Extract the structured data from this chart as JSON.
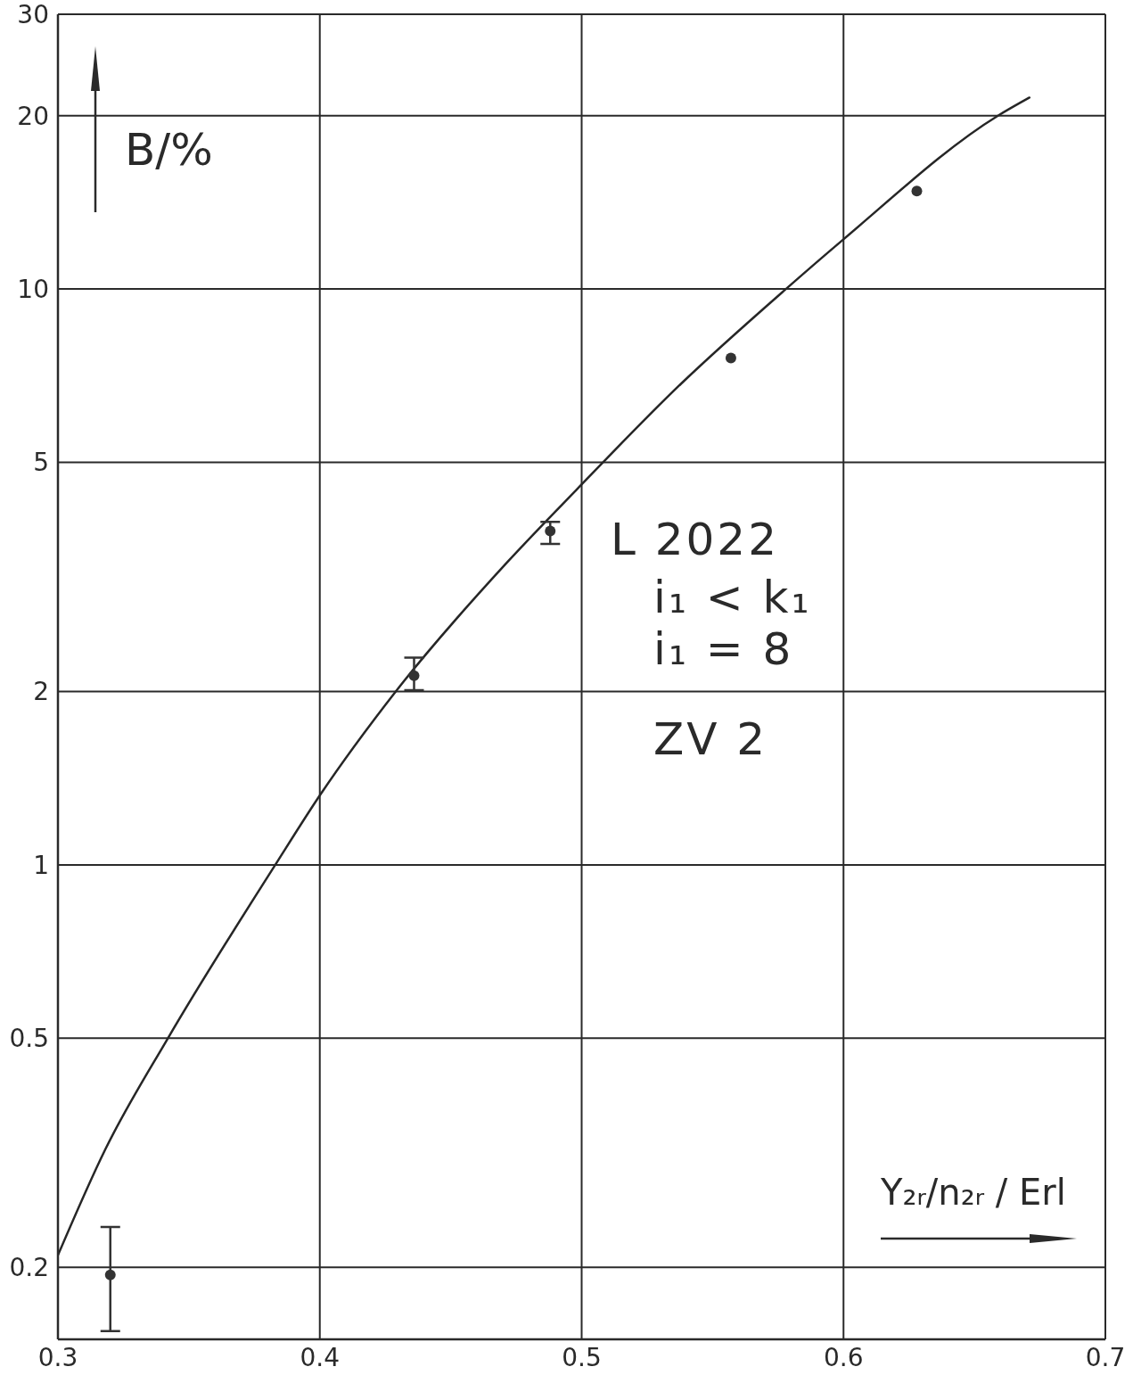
{
  "chart_data": {
    "type": "scatter",
    "xlabel": "Y₂ᵣ/n₂ᵣ / Erl",
    "ylabel": "B/%",
    "annotations": [
      "L 2022",
      "i₁ < k₁",
      "i₁ = 8",
      "ZV 2"
    ],
    "series": [
      {
        "type": "line",
        "color": "#262626",
        "marker": "none",
        "line_style": "solid",
        "x": [
          0.3,
          0.318,
          0.342,
          0.383,
          0.4,
          0.429,
          0.472,
          0.498,
          0.538,
          0.578,
          0.6,
          0.659,
          0.671
        ],
        "values": [
          0.21,
          0.32,
          0.5,
          1,
          1.32,
          2,
          3.37,
          4.48,
          6.85,
          10,
          12.2,
          20,
          21.5
        ]
      },
      {
        "color": "#333333",
        "marker": "circle",
        "x": [
          0.32,
          0.436,
          0.488,
          0.557,
          0.628
        ],
        "values": [
          0.194,
          2.13,
          3.8,
          7.59,
          14.8
        ],
        "errors": [
          [
            0.155,
            0.235
          ],
          [
            2.01,
            2.29
          ],
          [
            3.61,
            3.94
          ],
          null,
          null
        ]
      }
    ],
    "xlim": [
      0.3,
      0.7
    ],
    "xticks": [
      0.3,
      0.4,
      0.5,
      0.6,
      0.7
    ],
    "ylim": [
      0.15,
      30
    ],
    "yticks": [
      0.2,
      0.5,
      1,
      2,
      5,
      10,
      20,
      30
    ],
    "log": "y",
    "grid": true
  }
}
